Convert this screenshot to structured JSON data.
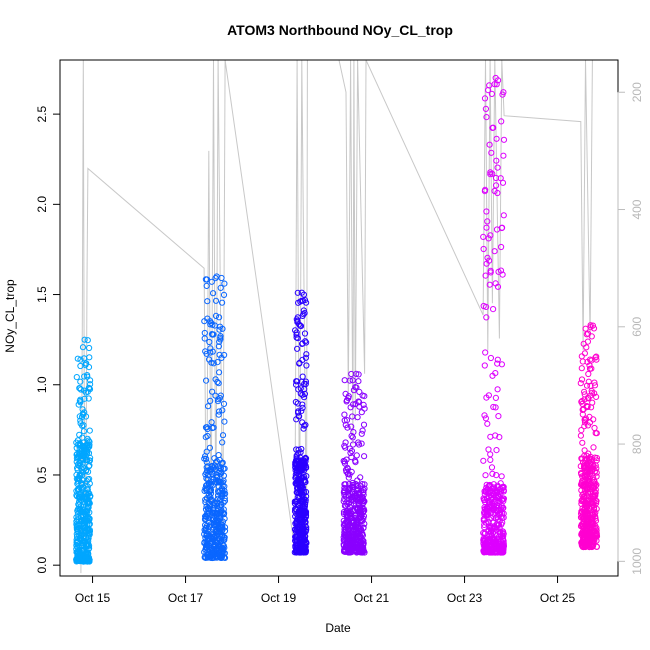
{
  "chart_data": {
    "type": "scatter",
    "title": "ATOM3 Northbound NOy_CL_trop",
    "xlabel": "Date",
    "ylabel": "NOy_CL_trop",
    "x_ticks": [
      "Oct 15",
      "Oct 17",
      "Oct 19",
      "Oct 21",
      "Oct 23",
      "Oct 25"
    ],
    "xlim_days": [
      14.3,
      26.3
    ],
    "x_tick_days": [
      15,
      17,
      19,
      21,
      23,
      25
    ],
    "ylim": [
      -0.06,
      2.8
    ],
    "y_ticks": [
      "0.0",
      "0.5",
      "1.0",
      "1.5",
      "2.0",
      "2.5"
    ],
    "y_tick_values": [
      0.0,
      0.5,
      1.0,
      1.5,
      2.0,
      2.5
    ],
    "right_axis": {
      "ticks": [
        "200",
        "400",
        "600",
        "800",
        "1000"
      ],
      "tick_values": [
        200,
        400,
        600,
        800,
        1000
      ],
      "range": [
        1025,
        145
      ],
      "reversed": true,
      "color": "#bdbdbd"
    },
    "marker": "open-circle",
    "series": [
      {
        "color": "#00a6ff",
        "x_range": [
          14.65,
          14.95
        ],
        "y_range": [
          0.02,
          1.25
        ],
        "y_dense_max": 0.7,
        "y_peak": 1.25
      },
      {
        "color": "#0a66ff",
        "x_range": [
          17.4,
          17.85
        ],
        "y_range": [
          0.04,
          1.6
        ],
        "y_dense_max": 0.55,
        "y_peak": 1.6
      },
      {
        "color": "#2a00ff",
        "x_range": [
          19.35,
          19.6
        ],
        "y_range": [
          0.07,
          1.51
        ],
        "y_dense_max": 0.6,
        "y_peak": 1.51
      },
      {
        "color": "#8a00ff",
        "x_range": [
          20.4,
          20.85
        ],
        "y_range": [
          0.07,
          1.06
        ],
        "y_dense_max": 0.45,
        "y_peak": 1.06
      },
      {
        "color": "#dd00ff",
        "x_range": [
          23.4,
          23.85
        ],
        "y_range": [
          0.07,
          2.7
        ],
        "y_dense_max": 0.45,
        "y_peak": 2.7
      },
      {
        "color": "#ff00d0",
        "x_range": [
          25.5,
          25.85
        ],
        "y_range": [
          0.1,
          1.33
        ],
        "y_dense_max": 0.6,
        "y_peak": 1.33
      }
    ],
    "pressure_trace": {
      "color": "#c8c8c8",
      "points": [
        [
          14.75,
          1020
        ],
        [
          14.78,
          600
        ],
        [
          14.8,
          145
        ],
        [
          14.82,
          700
        ],
        [
          14.85,
          1000
        ],
        [
          14.88,
          520
        ],
        [
          14.9,
          330
        ],
        [
          17.4,
          500
        ],
        [
          17.45,
          980
        ],
        [
          17.5,
          300
        ],
        [
          17.55,
          950
        ],
        [
          17.6,
          145
        ],
        [
          17.65,
          960
        ],
        [
          17.7,
          145
        ],
        [
          17.8,
          980
        ],
        [
          17.85,
          145
        ],
        [
          19.35,
          980
        ],
        [
          19.4,
          145
        ],
        [
          19.45,
          960
        ],
        [
          19.5,
          145
        ],
        [
          19.6,
          980
        ],
        [
          19.62,
          145
        ],
        [
          20.3,
          145
        ],
        [
          20.45,
          200
        ],
        [
          20.5,
          720
        ],
        [
          20.55,
          145
        ],
        [
          20.6,
          800
        ],
        [
          20.62,
          145
        ],
        [
          20.65,
          760
        ],
        [
          20.7,
          145
        ],
        [
          20.85,
          680
        ],
        [
          20.88,
          145
        ],
        [
          23.4,
          580
        ],
        [
          23.45,
          145
        ],
        [
          23.5,
          640
        ],
        [
          23.55,
          145
        ],
        [
          23.6,
          560
        ],
        [
          23.65,
          145
        ],
        [
          23.75,
          620
        ],
        [
          23.8,
          145
        ],
        [
          23.85,
          240
        ],
        [
          25.5,
          250
        ],
        [
          25.55,
          640
        ],
        [
          25.6,
          145
        ],
        [
          25.7,
          620
        ],
        [
          25.75,
          145
        ],
        [
          25.85,
          145
        ]
      ]
    }
  }
}
